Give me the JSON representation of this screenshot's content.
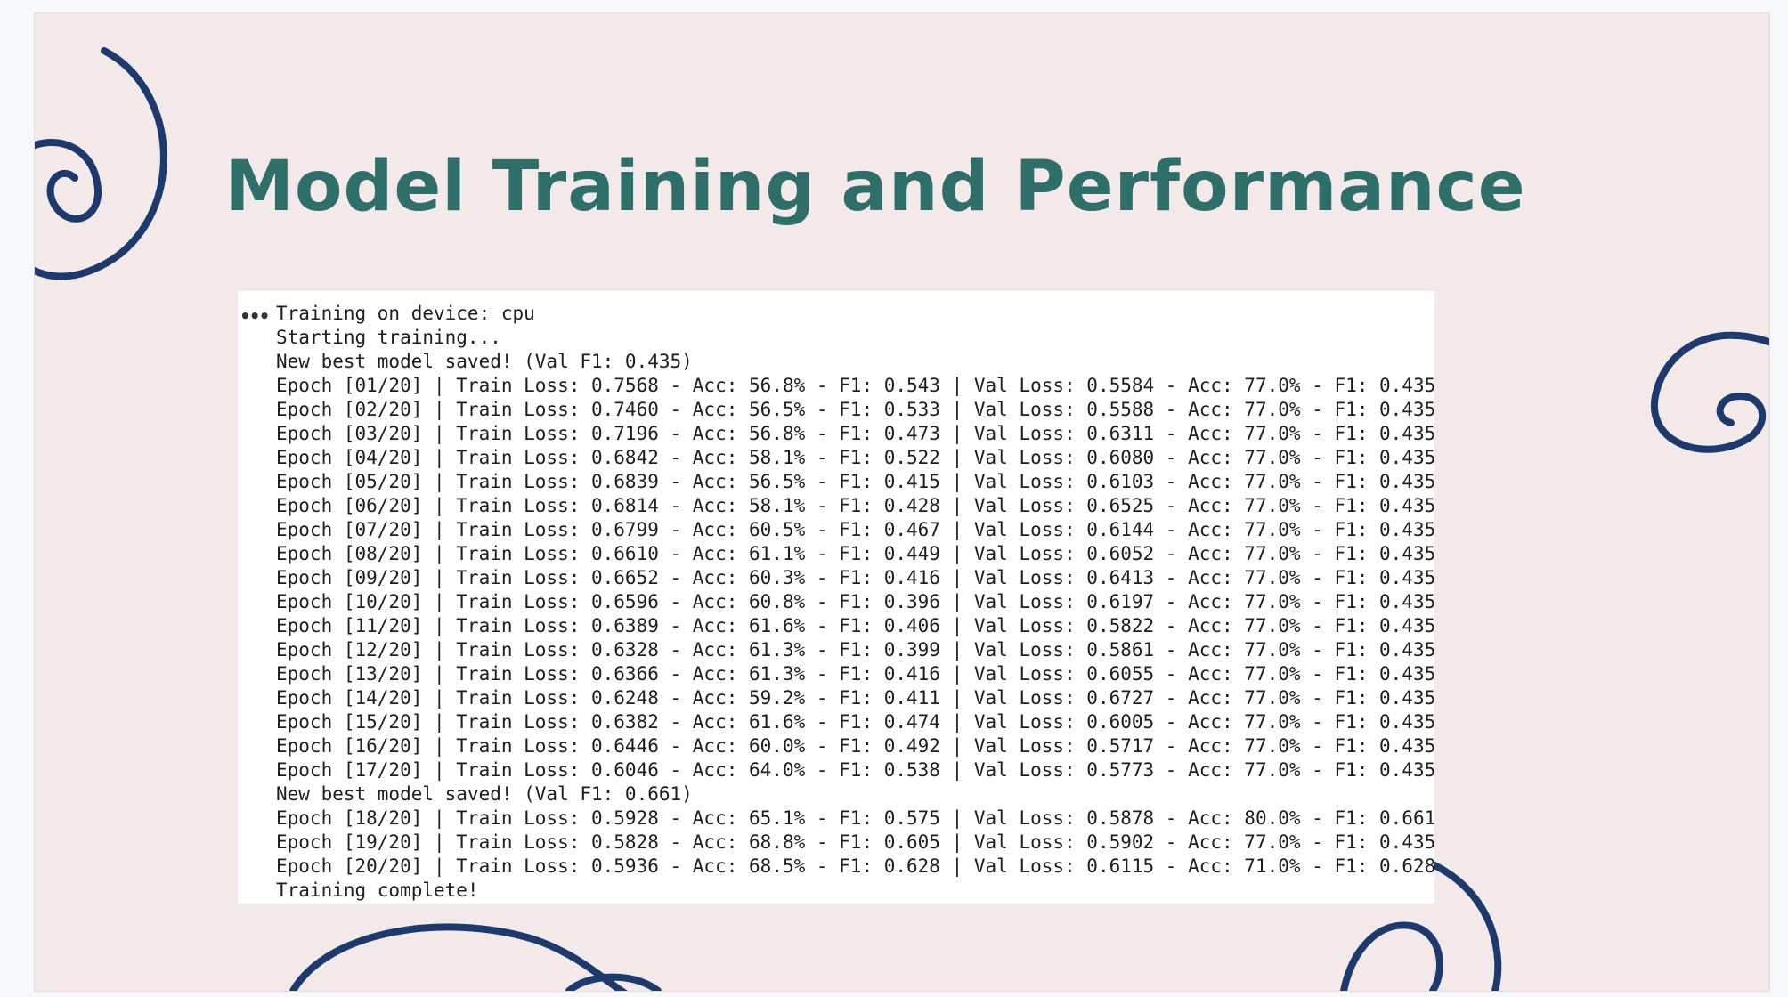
{
  "slide": {
    "title": "Model Training and Performance",
    "colors": {
      "title": "#2f6f6a",
      "swirl": "#1d3a6e",
      "background": "#f4e9e9"
    }
  },
  "log": {
    "more_icon": "ellipsis-icon",
    "lines": [
      "Training on device: cpu",
      "Starting training...",
      "New best model saved! (Val F1: 0.435)",
      "Epoch [01/20] | Train Loss: 0.7568 - Acc: 56.8% - F1: 0.543 | Val Loss: 0.5584 - Acc: 77.0% - F1: 0.435",
      "Epoch [02/20] | Train Loss: 0.7460 - Acc: 56.5% - F1: 0.533 | Val Loss: 0.5588 - Acc: 77.0% - F1: 0.435",
      "Epoch [03/20] | Train Loss: 0.7196 - Acc: 56.8% - F1: 0.473 | Val Loss: 0.6311 - Acc: 77.0% - F1: 0.435",
      "Epoch [04/20] | Train Loss: 0.6842 - Acc: 58.1% - F1: 0.522 | Val Loss: 0.6080 - Acc: 77.0% - F1: 0.435",
      "Epoch [05/20] | Train Loss: 0.6839 - Acc: 56.5% - F1: 0.415 | Val Loss: 0.6103 - Acc: 77.0% - F1: 0.435",
      "Epoch [06/20] | Train Loss: 0.6814 - Acc: 58.1% - F1: 0.428 | Val Loss: 0.6525 - Acc: 77.0% - F1: 0.435",
      "Epoch [07/20] | Train Loss: 0.6799 - Acc: 60.5% - F1: 0.467 | Val Loss: 0.6144 - Acc: 77.0% - F1: 0.435",
      "Epoch [08/20] | Train Loss: 0.6610 - Acc: 61.1% - F1: 0.449 | Val Loss: 0.6052 - Acc: 77.0% - F1: 0.435",
      "Epoch [09/20] | Train Loss: 0.6652 - Acc: 60.3% - F1: 0.416 | Val Loss: 0.6413 - Acc: 77.0% - F1: 0.435",
      "Epoch [10/20] | Train Loss: 0.6596 - Acc: 60.8% - F1: 0.396 | Val Loss: 0.6197 - Acc: 77.0% - F1: 0.435",
      "Epoch [11/20] | Train Loss: 0.6389 - Acc: 61.6% - F1: 0.406 | Val Loss: 0.5822 - Acc: 77.0% - F1: 0.435",
      "Epoch [12/20] | Train Loss: 0.6328 - Acc: 61.3% - F1: 0.399 | Val Loss: 0.5861 - Acc: 77.0% - F1: 0.435",
      "Epoch [13/20] | Train Loss: 0.6366 - Acc: 61.3% - F1: 0.416 | Val Loss: 0.6055 - Acc: 77.0% - F1: 0.435",
      "Epoch [14/20] | Train Loss: 0.6248 - Acc: 59.2% - F1: 0.411 | Val Loss: 0.6727 - Acc: 77.0% - F1: 0.435",
      "Epoch [15/20] | Train Loss: 0.6382 - Acc: 61.6% - F1: 0.474 | Val Loss: 0.6005 - Acc: 77.0% - F1: 0.435",
      "Epoch [16/20] | Train Loss: 0.6446 - Acc: 60.0% - F1: 0.492 | Val Loss: 0.5717 - Acc: 77.0% - F1: 0.435",
      "Epoch [17/20] | Train Loss: 0.6046 - Acc: 64.0% - F1: 0.538 | Val Loss: 0.5773 - Acc: 77.0% - F1: 0.435",
      "New best model saved! (Val F1: 0.661)",
      "Epoch [18/20] | Train Loss: 0.5928 - Acc: 65.1% - F1: 0.575 | Val Loss: 0.5878 - Acc: 80.0% - F1: 0.661",
      "Epoch [19/20] | Train Loss: 0.5828 - Acc: 68.8% - F1: 0.605 | Val Loss: 0.5902 - Acc: 77.0% - F1: 0.435",
      "Epoch [20/20] | Train Loss: 0.5936 - Acc: 68.5% - F1: 0.628 | Val Loss: 0.6115 - Acc: 71.0% - F1: 0.628",
      "Training complete!"
    ]
  }
}
